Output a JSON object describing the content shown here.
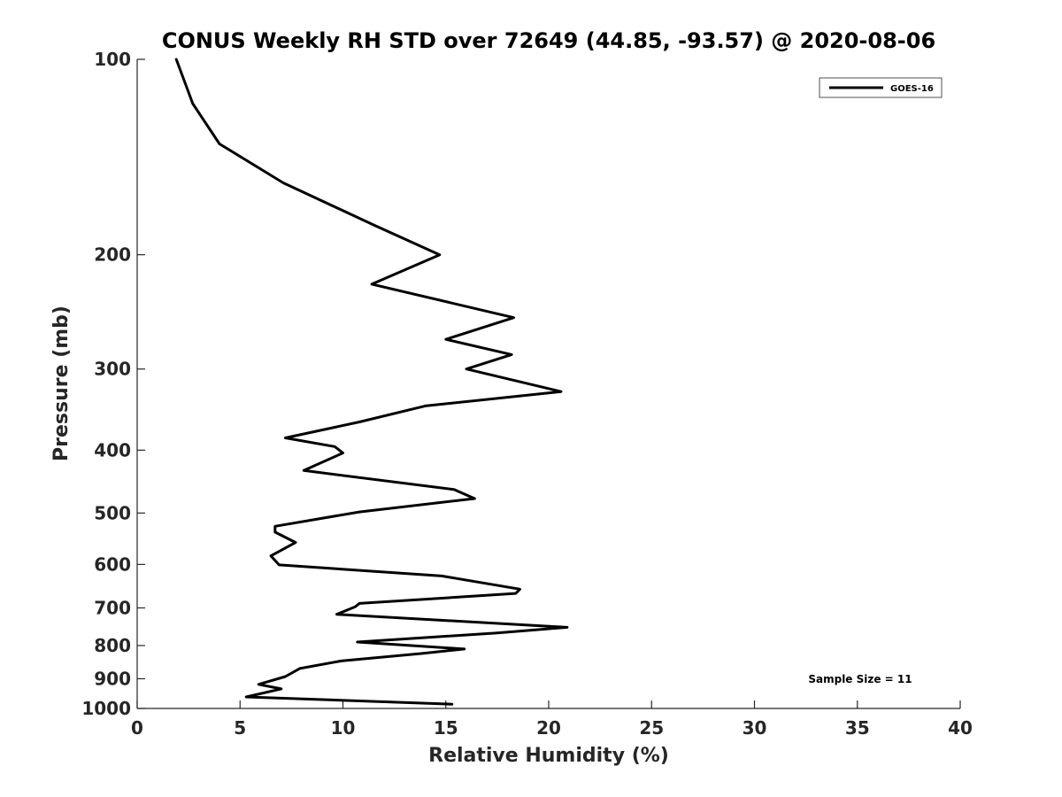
{
  "chart_data": {
    "type": "line",
    "title": "CONUS Weekly RH STD over 72649 (44.85, -93.57) @ 2020-08-06",
    "xlabel": "Relative Humidity (%)",
    "ylabel": "Pressure (mb)",
    "xlim": [
      0,
      40
    ],
    "ylim": [
      100,
      1000
    ],
    "yscale": "log",
    "yreversed": true,
    "grid": false,
    "legend_position": "top-right",
    "x_ticks": [
      0,
      5,
      10,
      15,
      20,
      25,
      30,
      35,
      40
    ],
    "x_tick_labels": [
      "0",
      "5",
      "10",
      "15",
      "20",
      "25",
      "30",
      "35",
      "40"
    ],
    "y_ticks": [
      100,
      200,
      300,
      400,
      500,
      600,
      700,
      800,
      900,
      1000
    ],
    "y_tick_labels": [
      "100",
      "200",
      "300",
      "400",
      "500",
      "600",
      "700",
      "800",
      "900",
      "1000"
    ],
    "annotation": "Sample Size = 11",
    "series": [
      {
        "name": "GOES-16",
        "color": "#000000",
        "points": [
          [
            1.9,
            100
          ],
          [
            2.7,
            117
          ],
          [
            4.0,
            135
          ],
          [
            7.1,
            155
          ],
          [
            11.5,
            180
          ],
          [
            14.7,
            200
          ],
          [
            11.4,
            222
          ],
          [
            18.3,
            250
          ],
          [
            15.0,
            270
          ],
          [
            18.2,
            285
          ],
          [
            16.0,
            300
          ],
          [
            20.6,
            325
          ],
          [
            14.0,
            342
          ],
          [
            10.8,
            362
          ],
          [
            7.2,
            383
          ],
          [
            9.6,
            395
          ],
          [
            10.0,
            404
          ],
          [
            8.1,
            430
          ],
          [
            15.4,
            460
          ],
          [
            16.4,
            475
          ],
          [
            10.8,
            498
          ],
          [
            6.7,
            524
          ],
          [
            6.7,
            535
          ],
          [
            7.7,
            555
          ],
          [
            6.5,
            582
          ],
          [
            6.9,
            601
          ],
          [
            14.8,
            625
          ],
          [
            18.6,
            655
          ],
          [
            18.4,
            665
          ],
          [
            10.8,
            689
          ],
          [
            10.6,
            697
          ],
          [
            9.7,
            716
          ],
          [
            20.9,
            750
          ],
          [
            17.5,
            765
          ],
          [
            10.7,
            790
          ],
          [
            15.9,
            810
          ],
          [
            13.8,
            823
          ],
          [
            9.9,
            845
          ],
          [
            7.9,
            868
          ],
          [
            7.2,
            893
          ],
          [
            5.9,
            918
          ],
          [
            7.0,
            933
          ],
          [
            5.3,
            960
          ],
          [
            15.3,
            985
          ]
        ]
      }
    ]
  }
}
